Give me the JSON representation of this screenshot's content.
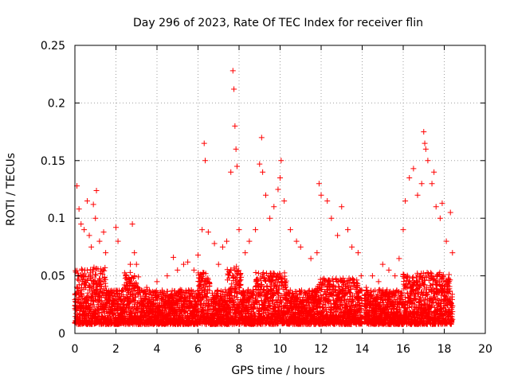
{
  "chart_data": {
    "type": "scatter",
    "title": "Day 296 of 2023, Rate Of TEC Index for receiver flin",
    "xlabel": "GPS time / hours",
    "ylabel": "ROTI / TECUs",
    "xlim": [
      0,
      20
    ],
    "ylim": [
      0,
      0.25
    ],
    "xticks": [
      "0",
      "2",
      "4",
      "6",
      "8",
      "10",
      "12",
      "14",
      "16",
      "18",
      "20"
    ],
    "yticks": [
      "0",
      "0.05",
      "0.1",
      "0.15",
      "0.2",
      "0.25"
    ],
    "grid": true,
    "marker": "plus",
    "color": "#ff0000",
    "series": [
      {
        "x": [
          0.1,
          0.2,
          0.3,
          0.45,
          0.6,
          0.7,
          0.8,
          0.9,
          1.0,
          1.05,
          1.2,
          1.4,
          1.5,
          2.0,
          2.1,
          2.5,
          2.7,
          2.8,
          2.9,
          3.0,
          3.5,
          4.0,
          4.5,
          4.8,
          5.0,
          5.3,
          5.5,
          5.8,
          6.0,
          6.2,
          6.3,
          6.35,
          6.5,
          6.8,
          7.0,
          7.2,
          7.4,
          7.6,
          7.7,
          7.75,
          7.8,
          7.85,
          7.9,
          8.0,
          8.3,
          8.5,
          8.8,
          9.0,
          9.1,
          9.15,
          9.3,
          9.5,
          9.7,
          9.9,
          10.0,
          10.05,
          10.2,
          10.5,
          10.8,
          11.0,
          11.5,
          11.8,
          11.9,
          12.0,
          12.3,
          12.5,
          12.8,
          13.0,
          13.3,
          13.5,
          13.8,
          13.95,
          14.2,
          14.5,
          14.8,
          15.0,
          15.3,
          15.6,
          15.8,
          16.0,
          16.1,
          16.3,
          16.5,
          16.7,
          16.9,
          17.0,
          17.05,
          17.1,
          17.2,
          17.4,
          17.5,
          17.6,
          17.8,
          17.9,
          18.1,
          18.3,
          18.4
        ],
        "y": [
          0.128,
          0.108,
          0.095,
          0.09,
          0.115,
          0.085,
          0.075,
          0.112,
          0.1,
          0.124,
          0.08,
          0.088,
          0.07,
          0.092,
          0.08,
          0.05,
          0.06,
          0.095,
          0.07,
          0.06,
          0.04,
          0.045,
          0.05,
          0.066,
          0.055,
          0.06,
          0.062,
          0.055,
          0.068,
          0.09,
          0.165,
          0.15,
          0.088,
          0.078,
          0.06,
          0.075,
          0.08,
          0.14,
          0.228,
          0.212,
          0.18,
          0.16,
          0.145,
          0.09,
          0.07,
          0.08,
          0.09,
          0.147,
          0.17,
          0.14,
          0.12,
          0.1,
          0.11,
          0.125,
          0.135,
          0.15,
          0.115,
          0.09,
          0.08,
          0.075,
          0.065,
          0.07,
          0.13,
          0.12,
          0.115,
          0.1,
          0.085,
          0.11,
          0.09,
          0.075,
          0.07,
          0.05,
          0.04,
          0.05,
          0.045,
          0.06,
          0.055,
          0.05,
          0.065,
          0.09,
          0.115,
          0.135,
          0.143,
          0.12,
          0.13,
          0.175,
          0.165,
          0.16,
          0.15,
          0.13,
          0.14,
          0.11,
          0.1,
          0.113,
          0.08,
          0.105,
          0.07
        ]
      }
    ]
  }
}
